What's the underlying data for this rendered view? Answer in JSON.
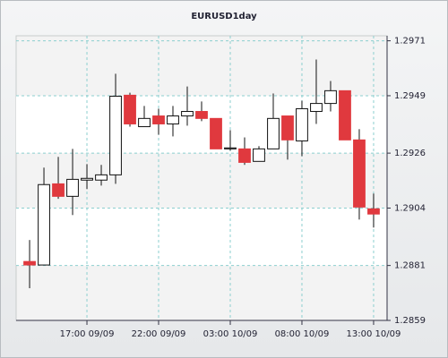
{
  "chart_data": {
    "type": "candlestick",
    "title": "EURUSD1day",
    "x": [
      0,
      1,
      2,
      3,
      4,
      5,
      6,
      7,
      8,
      9,
      10,
      11,
      12,
      13,
      14,
      15,
      16,
      17,
      18,
      19,
      20,
      21,
      22,
      23,
      24
    ],
    "open": [
      1.28826,
      1.28812,
      1.29137,
      1.29087,
      1.29152,
      1.29152,
      1.29173,
      1.29492,
      1.29366,
      1.29409,
      1.29377,
      1.29409,
      1.29427,
      1.29399,
      1.29277,
      1.29277,
      1.29227,
      1.29277,
      1.29409,
      1.29309,
      1.29427,
      1.29459,
      1.2951,
      1.29313,
      1.29037
    ],
    "high": [
      1.28912,
      1.29202,
      1.29245,
      1.29277,
      1.29216,
      1.29213,
      1.29578,
      1.29502,
      1.29449,
      1.29438,
      1.29449,
      1.29527,
      1.29467,
      1.29399,
      1.29352,
      1.29323,
      1.29288,
      1.29499,
      1.29409,
      1.2947,
      1.29635,
      1.29549,
      1.2951,
      1.29356,
      1.29098
    ],
    "low": [
      1.28719,
      1.28812,
      1.29077,
      1.29012,
      1.29116,
      1.2913,
      1.29137,
      1.29366,
      1.29366,
      1.29334,
      1.29327,
      1.2937,
      1.29388,
      1.29277,
      1.2927,
      1.29213,
      1.29227,
      1.29277,
      1.29234,
      1.29248,
      1.29377,
      1.29427,
      1.29313,
      1.28994,
      1.28962
    ],
    "close": [
      1.28812,
      1.29134,
      1.29087,
      1.29155,
      1.29159,
      1.29173,
      1.29488,
      1.29377,
      1.29399,
      1.29377,
      1.29409,
      1.29427,
      1.29399,
      1.29277,
      1.29281,
      1.29223,
      1.29277,
      1.29399,
      1.29313,
      1.29438,
      1.29459,
      1.2951,
      1.29313,
      1.29044,
      1.29016
    ],
    "up_color": "#ffffff",
    "down_color": "#e0393e",
    "xlim": [
      -0.94,
      24.94
    ],
    "xticks": [
      {
        "value": 4,
        "label": "17:00 09/09"
      },
      {
        "value": 9,
        "label": "22:00 09/09"
      },
      {
        "value": 14,
        "label": "03:00 10/09"
      },
      {
        "value": 19,
        "label": "08:00 10/09"
      },
      {
        "value": 24,
        "label": "13:00 10/09"
      }
    ],
    "ylim": [
      1.2859,
      1.2973
    ],
    "yticks": [
      1.2859,
      1.2881,
      1.2904,
      1.2926,
      1.2949,
      1.2971
    ],
    "grid": true
  }
}
